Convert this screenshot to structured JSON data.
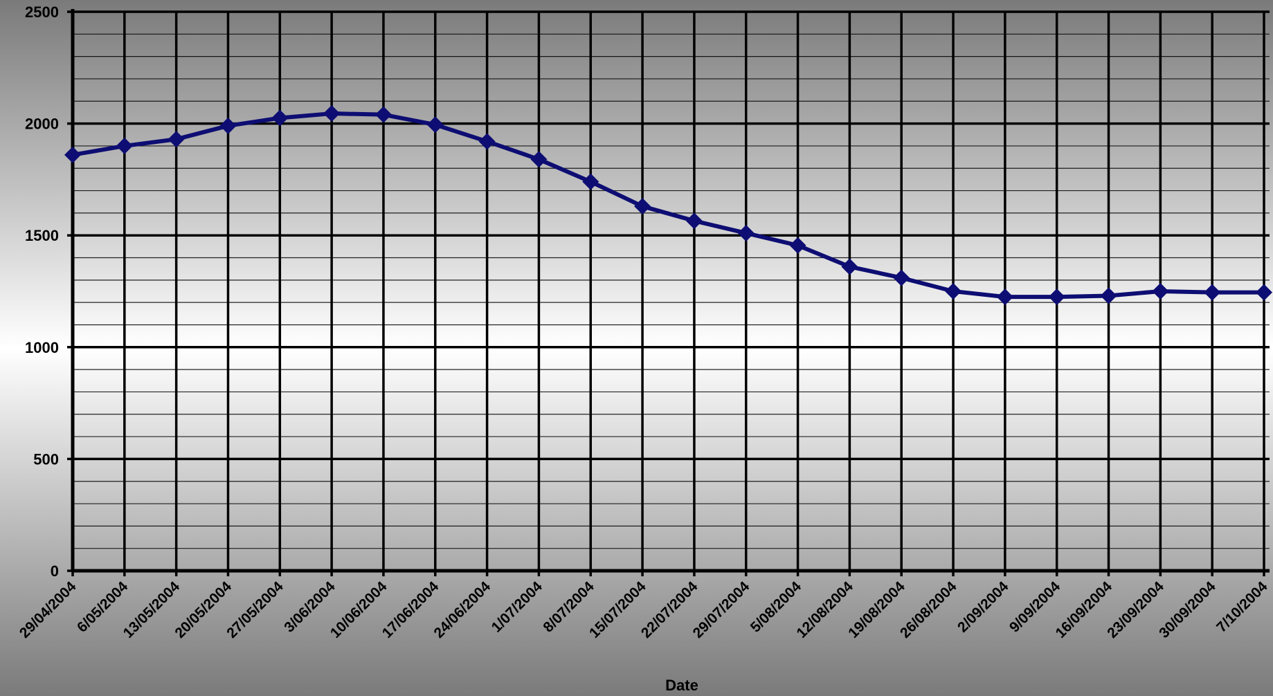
{
  "chart_data": {
    "type": "line",
    "title": "",
    "xlabel": "Date",
    "ylabel": "",
    "ylim": [
      0,
      2500
    ],
    "yticks": [
      0,
      500,
      1000,
      1500,
      2000,
      2500
    ],
    "y_minor_step": 100,
    "grid": true,
    "legend": "none",
    "x": [
      "29/04/2004",
      "6/05/2004",
      "13/05/2004",
      "20/05/2004",
      "27/05/2004",
      "3/06/2004",
      "10/06/2004",
      "17/06/2004",
      "24/06/2004",
      "1/07/2004",
      "8/07/2004",
      "15/07/2004",
      "22/07/2004",
      "29/07/2004",
      "5/08/2004",
      "12/08/2004",
      "19/08/2004",
      "26/08/2004",
      "2/09/2004",
      "9/09/2004",
      "16/09/2004",
      "23/09/2004",
      "30/09/2004",
      "7/10/2004"
    ],
    "series": [
      {
        "values": [
          1860,
          1900,
          1930,
          1990,
          2025,
          2045,
          2040,
          1995,
          1920,
          1840,
          1740,
          1630,
          1565,
          1510,
          1455,
          1360,
          1310,
          1250,
          1225,
          1225,
          1230,
          1250,
          1245,
          1245
        ]
      }
    ],
    "colors": {
      "line": "#0d0d73",
      "marker": "#0d0d73",
      "grid": "#000000",
      "background_edge": "#7a7a7a",
      "background_center": "#ffffff"
    },
    "marker": "diamond"
  }
}
